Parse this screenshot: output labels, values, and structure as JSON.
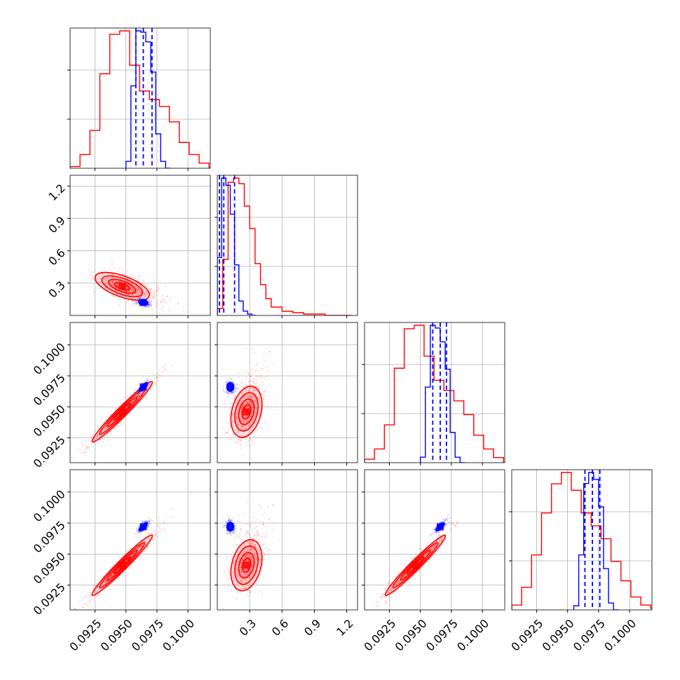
{
  "chart_data": {
    "type": "corner",
    "parameters": 4,
    "grid": true,
    "legend": "none",
    "colors": {
      "red_series": "#ff0000",
      "blue_series": "#0000ff",
      "grid": "#b0b0b0"
    },
    "axes": {
      "p0": {
        "range": [
          0.0905,
          0.1018
        ],
        "ticks": [
          0.0925,
          0.095,
          0.0975,
          0.1
        ],
        "tick_labels": [
          "0.0925",
          "0.0950",
          "0.0975",
          "0.1000"
        ]
      },
      "p1": {
        "range": [
          0.0,
          1.3
        ],
        "ticks": [
          0.3,
          0.6,
          0.9,
          1.2
        ],
        "tick_labels": [
          "0.3",
          "0.6",
          "0.9",
          "1.2"
        ]
      },
      "p2": {
        "range": [
          0.0905,
          0.1018
        ],
        "ticks": [
          0.0925,
          0.095,
          0.0975,
          0.1
        ],
        "tick_labels": [
          "0.0925",
          "0.0950",
          "0.0975",
          "0.1000"
        ]
      },
      "p3": {
        "range": [
          0.0905,
          0.1018
        ],
        "ticks": [
          0.0925,
          0.095,
          0.0975,
          0.1
        ],
        "tick_labels": [
          "0.0925",
          "0.0950",
          "0.0975",
          "0.1000"
        ]
      }
    },
    "series": [
      {
        "color": "#ff0000",
        "centers": [
          0.0947,
          0.27,
          0.0946,
          0.0941
        ],
        "widths": [
          0.0021,
          0.15,
          0.0021,
          0.0021
        ],
        "histograms": [
          {
            "x": [
              0.0905,
              0.0913,
              0.0921,
              0.0929,
              0.0937,
              0.0945,
              0.0953,
              0.0961,
              0.0969,
              0.0977,
              0.0985,
              0.0993,
              0.1001,
              0.1009,
              0.1017
            ],
            "counts": [
              1,
              8,
              22,
              55,
              78,
              80,
              60,
              45,
              40,
              36,
              27,
              15,
              8,
              3,
              0
            ]
          },
          {
            "x": [
              0.0,
              0.05,
              0.1,
              0.15,
              0.2,
              0.25,
              0.3,
              0.35,
              0.4,
              0.45,
              0.5,
              0.6,
              0.7,
              0.8,
              0.9,
              1.0,
              1.1,
              1.2
            ],
            "counts": [
              5,
              40,
              95,
              98,
              94,
              78,
              62,
              37,
              22,
              12,
              6,
              3,
              2,
              1,
              1,
              0,
              0,
              0
            ]
          },
          {
            "x": [
              0.0905,
              0.0913,
              0.0921,
              0.0929,
              0.0937,
              0.0945,
              0.0953,
              0.0961,
              0.0969,
              0.0977,
              0.0985,
              0.0993,
              0.1001,
              0.1009,
              0.1017
            ],
            "counts": [
              2,
              8,
              22,
              55,
              78,
              80,
              62,
              48,
              42,
              36,
              28,
              16,
              8,
              3,
              0
            ]
          },
          {
            "x": [
              0.0905,
              0.0913,
              0.0921,
              0.0929,
              0.0937,
              0.0945,
              0.0953,
              0.0961,
              0.0969,
              0.0977,
              0.0985,
              0.0993,
              0.1001,
              0.1009,
              0.1017
            ],
            "counts": [
              3,
              14,
              34,
              60,
              78,
              85,
              74,
              60,
              52,
              44,
              30,
              18,
              8,
              3,
              1
            ]
          }
        ]
      },
      {
        "color": "#0000ff",
        "centers": [
          0.0964,
          0.12,
          0.0966,
          0.0972
        ],
        "widths": [
          0.0005,
          0.05,
          0.0005,
          0.0005
        ],
        "quantiles_dashed": [
          [
            0.0958,
            0.0964,
            0.0971
          ],
          [
            0.02,
            0.06,
            0.16
          ],
          [
            0.096,
            0.0966,
            0.0971
          ],
          [
            0.0964,
            0.097,
            0.0976
          ]
        ],
        "histograms": [
          {
            "x": [
              0.095,
              0.0954,
              0.0958,
              0.0962,
              0.0966,
              0.097,
              0.0974,
              0.0978,
              0.0982
            ],
            "counts": [
              5,
              60,
              100,
              99,
              92,
              70,
              25,
              5,
              0
            ]
          },
          {
            "x": [
              0.0,
              0.04,
              0.08,
              0.12,
              0.16,
              0.2,
              0.24,
              0.28,
              0.32
            ],
            "counts": [
              40,
              95,
              90,
              70,
              35,
              10,
              3,
              1,
              0
            ]
          },
          {
            "x": [
              0.095,
              0.0954,
              0.0958,
              0.0962,
              0.0966,
              0.097,
              0.0974,
              0.0978,
              0.0982
            ],
            "counts": [
              4,
              55,
              100,
              98,
              88,
              68,
              22,
              4,
              0
            ]
          },
          {
            "x": [
              0.0955,
              0.0959,
              0.0963,
              0.0967,
              0.0971,
              0.0975,
              0.0979,
              0.0983,
              0.0987
            ],
            "counts": [
              3,
              40,
              92,
              100,
              95,
              75,
              30,
              5,
              0
            ]
          }
        ]
      }
    ]
  }
}
